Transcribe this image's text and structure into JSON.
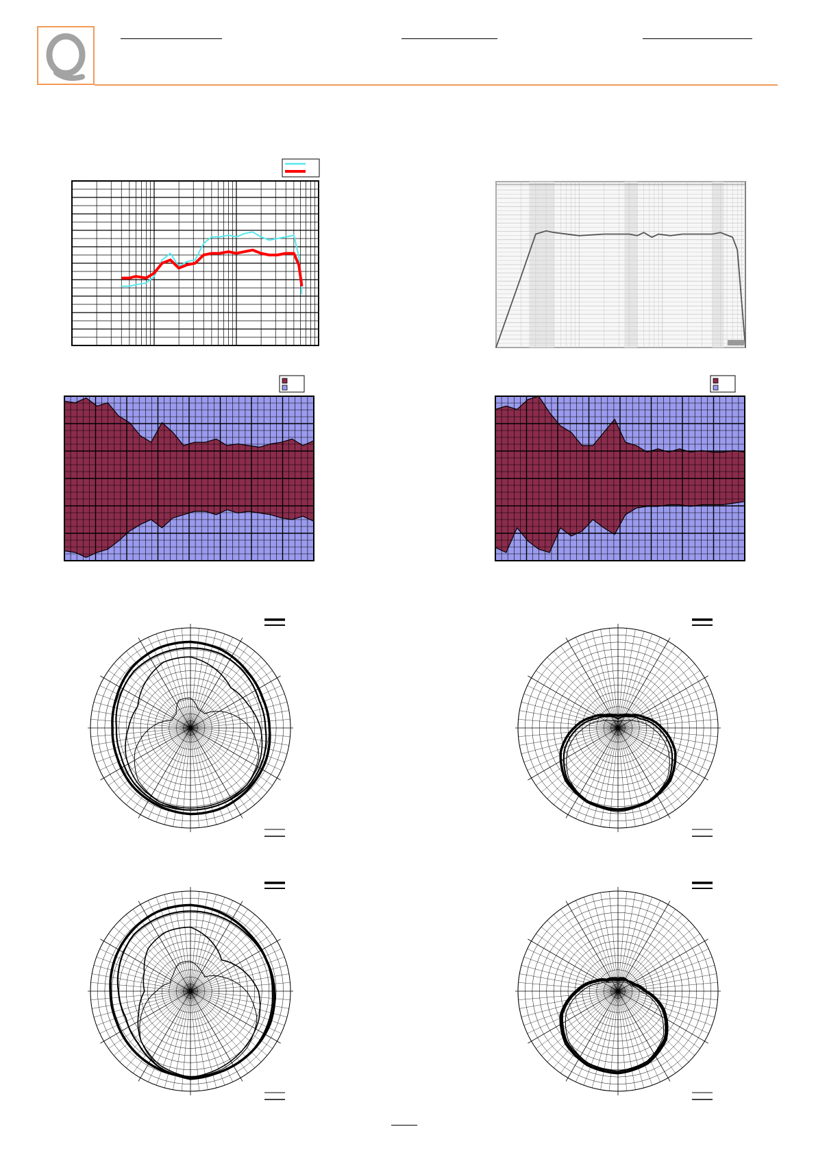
{
  "colors": {
    "accent_orange": "#f29a56",
    "logo_grey": "#a3a3a3",
    "series_cyan": "#55e8ee",
    "series_red": "#ff0000",
    "beam_fill": "#8b2c4c",
    "beam_background": "#9a9aee",
    "grid": "#000000"
  },
  "logo": {
    "icon": "q-letter-logo-icon"
  },
  "charts": {
    "sensitivity": {
      "type": "line",
      "scale": "log-x",
      "grid": true,
      "legend_position": "top-right",
      "series": [
        {
          "color": "#55e8ee",
          "x": [
            80,
            100,
            120,
            160,
            200,
            250,
            315,
            400,
            500,
            630,
            800,
            1000,
            1250,
            1600,
            2000,
            2500,
            3150,
            4000,
            5000,
            6300,
            8000,
            10000,
            11500,
            12500
          ],
          "y": [
            0.36,
            0.36,
            0.37,
            0.38,
            0.42,
            0.52,
            0.56,
            0.48,
            0.51,
            0.52,
            0.62,
            0.66,
            0.66,
            0.67,
            0.66,
            0.68,
            0.69,
            0.66,
            0.64,
            0.65,
            0.66,
            0.67,
            0.54,
            0.31
          ]
        },
        {
          "color": "#ff0000",
          "x": [
            80,
            100,
            120,
            160,
            200,
            250,
            315,
            400,
            500,
            630,
            800,
            1000,
            1250,
            1600,
            2000,
            2500,
            3150,
            4000,
            5000,
            6300,
            8000,
            10000,
            11500,
            12500
          ],
          "y": [
            0.41,
            0.41,
            0.42,
            0.41,
            0.44,
            0.5,
            0.52,
            0.47,
            0.49,
            0.5,
            0.55,
            0.56,
            0.56,
            0.57,
            0.56,
            0.57,
            0.58,
            0.56,
            0.55,
            0.55,
            0.56,
            0.56,
            0.49,
            0.36
          ]
        }
      ]
    },
    "frequency_response": {
      "type": "line",
      "scale": "log-x",
      "grid": true,
      "logo": "leap-software-logo-icon",
      "series": [
        {
          "color": "#555555",
          "x": [
            20,
            40,
            60,
            80,
            100,
            200,
            400,
            800,
            1000,
            1200,
            1500,
            1800,
            2500,
            3500,
            5000,
            8000,
            10000,
            14000,
            16000,
            20000
          ],
          "y": [
            0.0,
            0.45,
            0.72,
            0.74,
            0.73,
            0.71,
            0.72,
            0.72,
            0.71,
            0.73,
            0.7,
            0.72,
            0.71,
            0.72,
            0.72,
            0.72,
            0.73,
            0.7,
            0.62,
            0.0
          ]
        }
      ]
    },
    "beamwidth_left": {
      "type": "area",
      "grid": true,
      "legend_position": "top-right",
      "legend": [
        {
          "color": "#8b2c4c"
        },
        {
          "color": "#9a9aee"
        }
      ],
      "upper": [
        0.97,
        0.96,
        0.99,
        0.94,
        0.96,
        0.88,
        0.84,
        0.76,
        0.72,
        0.84,
        0.78,
        0.7,
        0.72,
        0.72,
        0.74,
        0.7,
        0.71,
        0.7,
        0.69,
        0.71,
        0.72,
        0.74,
        0.7,
        0.73
      ],
      "lower": [
        0.06,
        0.05,
        0.02,
        0.05,
        0.07,
        0.12,
        0.18,
        0.22,
        0.25,
        0.2,
        0.26,
        0.28,
        0.3,
        0.3,
        0.28,
        0.31,
        0.29,
        0.3,
        0.29,
        0.28,
        0.26,
        0.25,
        0.27,
        0.24
      ]
    },
    "beamwidth_right": {
      "type": "area",
      "grid": true,
      "legend_position": "top-right",
      "legend": [
        {
          "color": "#8b2c4c"
        },
        {
          "color": "#9a9aee"
        }
      ],
      "upper": [
        0.92,
        0.94,
        0.92,
        0.98,
        1.0,
        0.9,
        0.82,
        0.78,
        0.7,
        0.7,
        0.78,
        0.86,
        0.72,
        0.7,
        0.66,
        0.68,
        0.66,
        0.68,
        0.66,
        0.67,
        0.66,
        0.66,
        0.67,
        0.66
      ],
      "lower": [
        0.08,
        0.05,
        0.2,
        0.12,
        0.07,
        0.05,
        0.2,
        0.15,
        0.18,
        0.25,
        0.2,
        0.16,
        0.28,
        0.32,
        0.33,
        0.33,
        0.34,
        0.34,
        0.33,
        0.34,
        0.34,
        0.34,
        0.35,
        0.36
      ]
    },
    "polars": [
      {
        "id": "polar-1",
        "curves": [
          {
            "w": 3.5,
            "r": [
              0.86,
              0.84,
              0.8,
              0.78,
              0.79,
              0.82,
              0.84,
              0.86,
              0.86,
              0.84,
              0.82,
              0.79,
              0.78,
              0.8,
              0.84,
              0.86
            ]
          },
          {
            "w": 2.2,
            "r": [
              0.8,
              0.8,
              0.77,
              0.74,
              0.75,
              0.79,
              0.82,
              0.82,
              0.82,
              0.82,
              0.79,
              0.75,
              0.74,
              0.77,
              0.8,
              0.8
            ]
          },
          {
            "w": 1.6,
            "r": [
              0.71,
              0.64,
              0.57,
              0.62,
              0.7,
              0.76,
              0.8,
              0.8,
              0.8,
              0.8,
              0.76,
              0.7,
              0.62,
              0.57,
              0.64,
              0.71
            ]
          },
          {
            "w": 1.0,
            "r": [
              0.3,
              0.2,
              0.2,
              0.4,
              0.6,
              0.74,
              0.8,
              0.82,
              0.82,
              0.8,
              0.74,
              0.6,
              0.4,
              0.2,
              0.2,
              0.3
            ]
          }
        ]
      },
      {
        "id": "polar-2",
        "curves": [
          {
            "w": 3.5,
            "r": [
              0.12,
              0.14,
              0.18,
              0.28,
              0.44,
              0.62,
              0.74,
              0.8,
              0.82,
              0.8,
              0.74,
              0.62,
              0.44,
              0.28,
              0.18,
              0.14
            ]
          },
          {
            "w": 2.2,
            "r": [
              0.09,
              0.12,
              0.16,
              0.24,
              0.4,
              0.58,
              0.72,
              0.79,
              0.81,
              0.79,
              0.72,
              0.58,
              0.4,
              0.24,
              0.16,
              0.12
            ]
          },
          {
            "w": 1.0,
            "r": [
              0.06,
              0.08,
              0.1,
              0.18,
              0.34,
              0.54,
              0.7,
              0.8,
              0.84,
              0.8,
              0.7,
              0.54,
              0.34,
              0.18,
              0.1,
              0.08
            ]
          }
        ]
      },
      {
        "id": "polar-3",
        "curves": [
          {
            "w": 3.5,
            "r": [
              0.86,
              0.84,
              0.82,
              0.82,
              0.84,
              0.86,
              0.86,
              0.86,
              0.86,
              0.84,
              0.82,
              0.8,
              0.8,
              0.82,
              0.84,
              0.86
            ]
          },
          {
            "w": 2.2,
            "r": [
              0.8,
              0.8,
              0.8,
              0.82,
              0.82,
              0.84,
              0.86,
              0.86,
              0.88,
              0.82,
              0.74,
              0.7,
              0.72,
              0.76,
              0.8,
              0.8
            ]
          },
          {
            "w": 1.6,
            "r": [
              0.64,
              0.54,
              0.44,
              0.56,
              0.68,
              0.74,
              0.78,
              0.82,
              0.86,
              0.8,
              0.7,
              0.56,
              0.46,
              0.5,
              0.6,
              0.64
            ]
          },
          {
            "w": 1.0,
            "r": [
              0.3,
              0.24,
              0.2,
              0.36,
              0.56,
              0.72,
              0.8,
              0.84,
              0.86,
              0.82,
              0.7,
              0.52,
              0.34,
              0.22,
              0.24,
              0.3
            ]
          }
        ]
      },
      {
        "id": "polar-4",
        "curves": [
          {
            "w": 3.5,
            "r": [
              0.12,
              0.14,
              0.14,
              0.18,
              0.28,
              0.5,
              0.68,
              0.78,
              0.82,
              0.8,
              0.74,
              0.62,
              0.42,
              0.26,
              0.16,
              0.14
            ]
          },
          {
            "w": 2.2,
            "r": [
              0.1,
              0.12,
              0.14,
              0.16,
              0.26,
              0.48,
              0.66,
              0.76,
              0.8,
              0.78,
              0.72,
              0.6,
              0.4,
              0.24,
              0.14,
              0.12
            ]
          },
          {
            "w": 1.0,
            "r": [
              0.08,
              0.1,
              0.12,
              0.14,
              0.22,
              0.44,
              0.64,
              0.76,
              0.82,
              0.78,
              0.7,
              0.56,
              0.36,
              0.2,
              0.12,
              0.1
            ]
          }
        ]
      }
    ]
  }
}
